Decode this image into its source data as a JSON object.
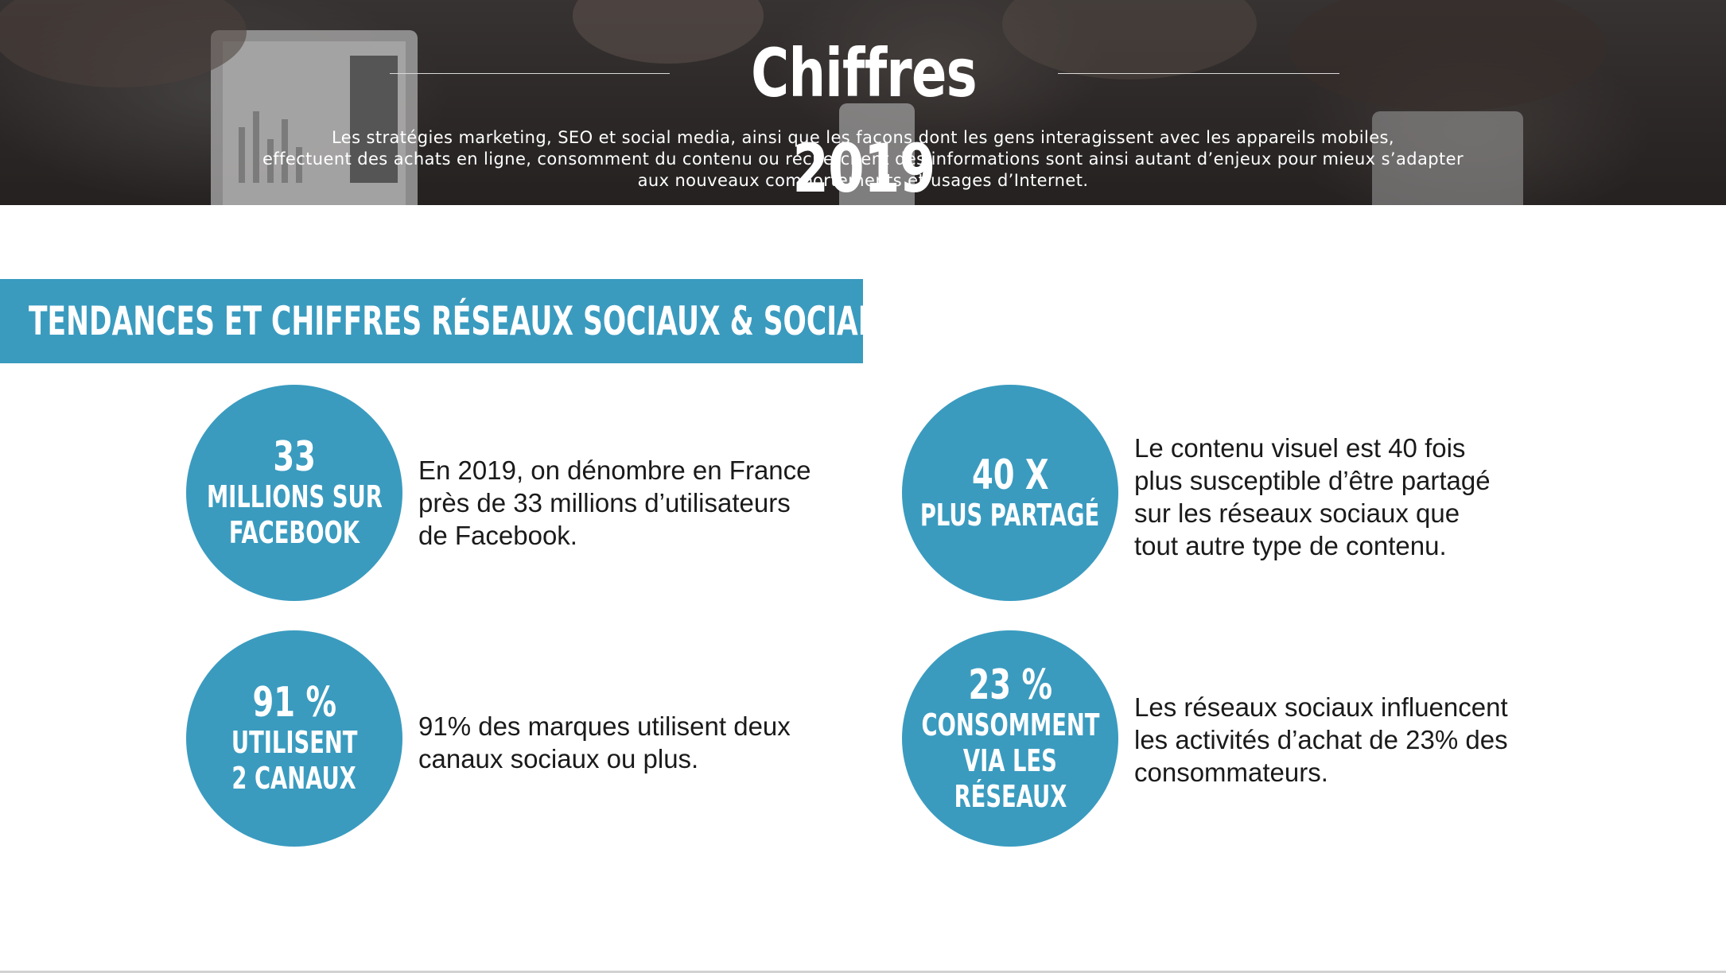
{
  "hero": {
    "title": "Chiffres 2019",
    "description_lines": [
      "Les stratégies marketing, SEO et social media, ainsi que les façons dont les gens interagissent avec les appareils mobiles,",
      "effectuent des achats en ligne, consomment du contenu ou recherchent des informations sont ainsi autant d’enjeux pour mieux s’adapter",
      "aux nouveaux comportements et usages d’Internet."
    ]
  },
  "section": {
    "title": "TENDANCES ET CHIFFRES RÉSEAUX SOCIAUX & SOCIAL MEDIA"
  },
  "stats": [
    {
      "number": "33",
      "label_lines": [
        "MILLIONS SUR",
        "FACEBOOK"
      ],
      "text_lines": [
        "En 2019, on dénombre en France",
        "près de 33 millions d’utilisateurs",
        "de Facebook."
      ]
    },
    {
      "number": "40 X",
      "label_lines": [
        "PLUS PARTAGÉ"
      ],
      "text_lines": [
        "Le contenu visuel est 40 fois",
        "plus susceptible d’être partagé",
        "sur les réseaux sociaux que",
        "tout autre type de contenu."
      ]
    },
    {
      "number": "91 %",
      "label_lines": [
        "UTILISENT",
        "2 CANAUX"
      ],
      "text_lines": [
        "91% des marques utilisent deux",
        "canaux sociaux ou plus."
      ]
    },
    {
      "number": "23 %",
      "label_lines": [
        "CONSOMMENT",
        "VIA LES",
        "RÉSEAUX"
      ],
      "text_lines": [
        "Les réseaux sociaux influencent",
        "les activités d’achat de 23% des",
        "consommateurs."
      ]
    }
  ],
  "colors": {
    "accent": "#3a9bbf",
    "hero_background": "#3a3534",
    "text": "#1a1a1a"
  }
}
